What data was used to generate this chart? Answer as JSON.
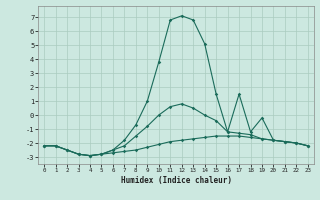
{
  "xlabel": "Humidex (Indice chaleur)",
  "background_color": "#cce8e0",
  "line_color": "#1a6b5a",
  "grid_color": "#aaccc0",
  "xlim": [
    -0.5,
    23.5
  ],
  "ylim": [
    -3.5,
    7.8
  ],
  "yticks": [
    -3,
    -2,
    -1,
    0,
    1,
    2,
    3,
    4,
    5,
    6,
    7
  ],
  "xticks": [
    0,
    1,
    2,
    3,
    4,
    5,
    6,
    7,
    8,
    9,
    10,
    11,
    12,
    13,
    14,
    15,
    16,
    17,
    18,
    19,
    20,
    21,
    22,
    23
  ],
  "line1_x": [
    0,
    1,
    2,
    3,
    4,
    5,
    6,
    7,
    8,
    9,
    10,
    11,
    12,
    13,
    14,
    15,
    16,
    17,
    18,
    19,
    20,
    21,
    22,
    23
  ],
  "line1_y": [
    -2.2,
    -2.2,
    -2.5,
    -2.8,
    -2.9,
    -2.8,
    -2.7,
    -2.6,
    -2.5,
    -2.3,
    -2.1,
    -1.9,
    -1.8,
    -1.7,
    -1.6,
    -1.5,
    -1.5,
    -1.5,
    -1.6,
    -1.7,
    -1.8,
    -1.9,
    -2.0,
    -2.2
  ],
  "line2_x": [
    0,
    1,
    2,
    3,
    4,
    5,
    6,
    7,
    8,
    9,
    10,
    11,
    12,
    13,
    14,
    15,
    16,
    17,
    18,
    19,
    20,
    21,
    22,
    23
  ],
  "line2_y": [
    -2.2,
    -2.2,
    -2.5,
    -2.8,
    -2.9,
    -2.8,
    -2.5,
    -2.2,
    -1.5,
    -0.8,
    0.0,
    0.6,
    0.8,
    0.5,
    0.0,
    -0.4,
    -1.2,
    -1.3,
    -1.4,
    -1.7,
    -1.8,
    -1.9,
    -2.0,
    -2.2
  ],
  "line3_x": [
    0,
    1,
    2,
    3,
    4,
    5,
    6,
    7,
    8,
    9,
    10,
    11,
    12,
    13,
    14,
    15,
    16,
    17,
    18,
    19,
    20,
    21,
    22,
    23
  ],
  "line3_y": [
    -2.2,
    -2.2,
    -2.5,
    -2.8,
    -2.9,
    -2.8,
    -2.5,
    -1.8,
    -0.7,
    1.0,
    3.8,
    6.8,
    7.1,
    6.8,
    5.1,
    1.5,
    -1.2,
    1.5,
    -1.2,
    -0.2,
    -1.8,
    -1.9,
    -2.0,
    -2.2
  ]
}
